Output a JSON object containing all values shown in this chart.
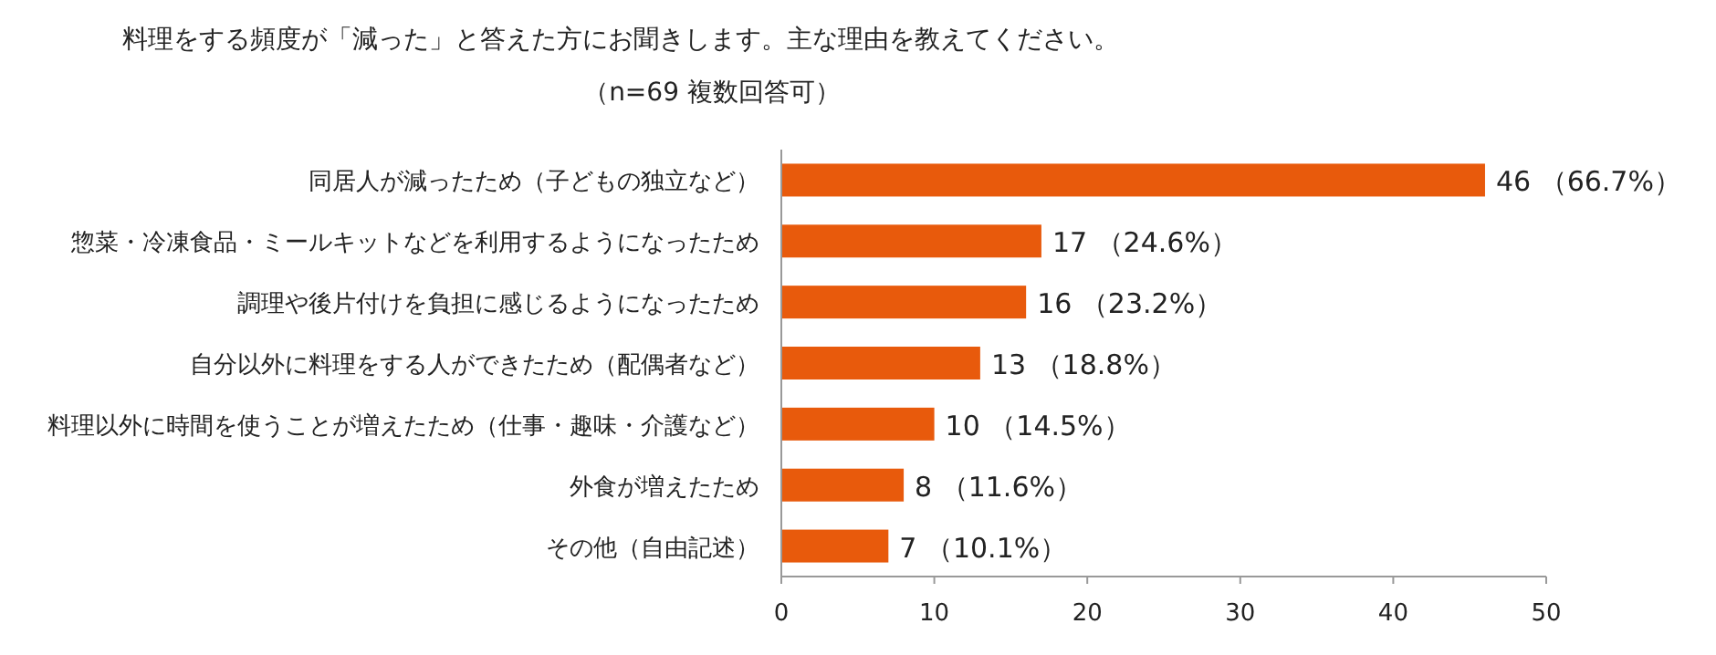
{
  "chart_data": {
    "type": "bar",
    "orientation": "horizontal",
    "title": "料理をする頻度が「減った」と答えた方にお聞きします。主な理由を教えてください。",
    "subtitle": "（n=69 複数回答可）",
    "categories": [
      "同居人が減ったため（子どもの独立など）",
      "惣菜・冷凍食品・ミールキットなどを利用するようになったため",
      "調理や後片付けを負担に感じるようになったため",
      "自分以外に料理をする人ができたため（配偶者など）",
      "料理以外に時間を使うことが増えたため（仕事・趣味・介護など）",
      "外食が増えたため",
      "その他（自由記述）"
    ],
    "values": [
      46,
      17,
      16,
      13,
      10,
      8,
      7
    ],
    "value_labels": [
      "46 （66.7%）",
      "17 （24.6%）",
      "16 （23.2%）",
      "13 （18.8%）",
      "10 （14.5%）",
      "8 （11.6%）",
      "7 （10.1%）"
    ],
    "color": "#e85a0c",
    "xlim": [
      0,
      50
    ],
    "xticks": [
      0,
      10,
      20,
      30,
      40,
      50
    ]
  }
}
